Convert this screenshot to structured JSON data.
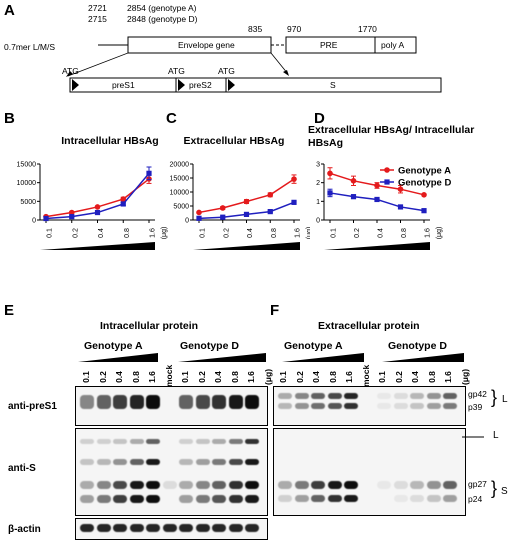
{
  "panel_a": {
    "label": "A",
    "construct_label": "0.7mer L/M/S",
    "pos_2721": "2721",
    "pos_2715": "2715",
    "pos_2854": "2854 (genotype A)",
    "pos_2848": "2848 (genotype D)",
    "pos_835": "835",
    "pos_970": "970",
    "pos_1770": "1770",
    "envelope": "Envelope gene",
    "pre": "PRE",
    "polya": "poly A",
    "atg": "ATG",
    "pres1": "preS1",
    "pres2": "preS2",
    "s": "S"
  },
  "chart_data": [
    {
      "panel": "B",
      "type": "line",
      "title": "Intracellular HBsAg",
      "x": [
        "0.1",
        "0.2",
        "0.4",
        "0.8",
        "1.6"
      ],
      "x_unit": "(μg)",
      "ylim": [
        0,
        15000
      ],
      "yticks": [
        "0",
        "5000",
        "10000",
        "15000"
      ],
      "series": [
        {
          "name": "Genotype A",
          "color": "#e41a1c",
          "values": [
            900,
            2000,
            3500,
            5600,
            11000
          ],
          "err": [
            150,
            200,
            250,
            500,
            1200
          ]
        },
        {
          "name": "Genotype D",
          "color": "#1f1fbf",
          "values": [
            400,
            900,
            2000,
            4300,
            12500
          ],
          "err": [
            100,
            150,
            200,
            400,
            1700
          ]
        }
      ]
    },
    {
      "panel": "C",
      "type": "line",
      "title": "Extracellular HBsAg",
      "x": [
        "0.1",
        "0.2",
        "0.4",
        "0.8",
        "1.6"
      ],
      "x_unit": "(μg)",
      "ylim": [
        0,
        20000
      ],
      "yticks": [
        "0",
        "5000",
        "10000",
        "15000",
        "20000"
      ],
      "series": [
        {
          "name": "Genotype A",
          "color": "#e41a1c",
          "values": [
            2700,
            4300,
            6600,
            9000,
            14600
          ],
          "err": [
            300,
            500,
            700,
            700,
            1500
          ]
        },
        {
          "name": "Genotype D",
          "color": "#1f1fbf",
          "values": [
            600,
            1000,
            2000,
            3000,
            6300
          ],
          "err": [
            100,
            150,
            200,
            300,
            500
          ]
        }
      ]
    },
    {
      "panel": "D",
      "type": "line",
      "title": "Extracellular HBsAg/ Intracellular HBsAg",
      "x": [
        "0.1",
        "0.2",
        "0.4",
        "0.8",
        "1.6"
      ],
      "x_unit": "(μg)",
      "ylim": [
        0,
        3
      ],
      "yticks": [
        "0",
        "1",
        "2",
        "3"
      ],
      "legend": "top-right",
      "series": [
        {
          "name": "Genotype A",
          "color": "#e41a1c",
          "values": [
            2.5,
            2.1,
            1.85,
            1.65,
            1.35
          ],
          "err": [
            0.3,
            0.25,
            0.15,
            0.2,
            0.05
          ]
        },
        {
          "name": "Genotype D",
          "color": "#1f1fbf",
          "values": [
            1.45,
            1.25,
            1.1,
            0.7,
            0.5
          ],
          "err": [
            0.2,
            0.1,
            0.1,
            0.05,
            0.05
          ]
        }
      ]
    }
  ],
  "panel_e": {
    "label": "E",
    "title": "Intracellular protein",
    "genotype_a": "Genotype A",
    "genotype_d": "Genotype D",
    "lanes_a": [
      "0.1",
      "0.2",
      "0.4",
      "0.8",
      "1.6"
    ],
    "mock": "mock",
    "lanes_d": [
      "0.1",
      "0.2",
      "0.4",
      "0.8",
      "1.6"
    ],
    "unit": "(μg)",
    "anti_pres1": "anti-preS1",
    "anti_s": "anti-S",
    "beta_actin": "β-actin"
  },
  "panel_f": {
    "label": "F",
    "title": "Extracellular protein",
    "genotype_a": "Genotype A",
    "genotype_d": "Genotype D",
    "lanes_a": [
      "0.1",
      "0.2",
      "0.4",
      "0.8",
      "1.6"
    ],
    "mock": "mock",
    "lanes_d": [
      "0.1",
      "0.2",
      "0.4",
      "0.8",
      "1.6"
    ],
    "unit": "(μg)",
    "gp42": "gp42",
    "p39": "p39",
    "l_top": "L",
    "l_mid": "L",
    "gp27": "gp27",
    "p24": "p24",
    "s": "S"
  }
}
